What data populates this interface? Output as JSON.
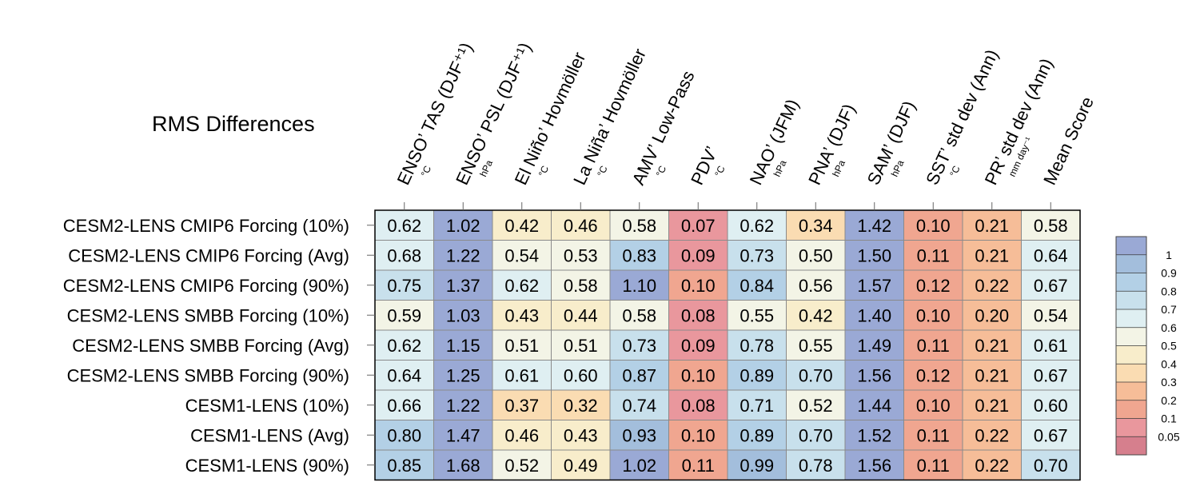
{
  "chart_data": {
    "type": "heatmap",
    "title": "RMS Differences",
    "columns": [
      {
        "label": "ENSO’ TAS (DJF⁺¹)",
        "unit": "°C"
      },
      {
        "label": "ENSO’ PSL (DJF⁺¹)",
        "unit": "hPa"
      },
      {
        "label": "El Niño’ Hovmöller",
        "unit": "°C"
      },
      {
        "label": "La Niña’ Hovmöller",
        "unit": "°C"
      },
      {
        "label": "AMV’ Low-Pass",
        "unit": "°C"
      },
      {
        "label": "PDV’",
        "unit": "°C"
      },
      {
        "label": "NAO’ (JFM)",
        "unit": "hPa"
      },
      {
        "label": "PNA’ (DJF)",
        "unit": "hPa"
      },
      {
        "label": "SAM’ (DJF)",
        "unit": "hPa"
      },
      {
        "label": "SST’ std dev (Ann)",
        "unit": "°C"
      },
      {
        "label": "PR’ std dev (Ann)",
        "unit": "mm day⁻¹"
      },
      {
        "label": "Mean Score",
        "unit": ""
      }
    ],
    "rows": [
      "CESM2-LENS CMIP6 Forcing (10%)",
      "CESM2-LENS CMIP6 Forcing (Avg)",
      "CESM2-LENS CMIP6 Forcing (90%)",
      "CESM2-LENS SMBB Forcing (10%)",
      "CESM2-LENS SMBB Forcing (Avg)",
      "CESM2-LENS SMBB Forcing (90%)",
      "CESM1-LENS (10%)",
      "CESM1-LENS (Avg)",
      "CESM1-LENS (90%)"
    ],
    "values": [
      [
        "0.62",
        "1.02",
        "0.42",
        "0.46",
        "0.58",
        "0.07",
        "0.62",
        "0.34",
        "1.42",
        "0.10",
        "0.21",
        "0.58"
      ],
      [
        "0.68",
        "1.22",
        "0.54",
        "0.53",
        "0.83",
        "0.09",
        "0.73",
        "0.50",
        "1.50",
        "0.11",
        "0.21",
        "0.64"
      ],
      [
        "0.75",
        "1.37",
        "0.62",
        "0.58",
        "1.10",
        "0.10",
        "0.84",
        "0.56",
        "1.57",
        "0.12",
        "0.22",
        "0.67"
      ],
      [
        "0.59",
        "1.03",
        "0.43",
        "0.44",
        "0.58",
        "0.08",
        "0.55",
        "0.42",
        "1.40",
        "0.10",
        "0.20",
        "0.54"
      ],
      [
        "0.62",
        "1.15",
        "0.51",
        "0.51",
        "0.73",
        "0.09",
        "0.78",
        "0.55",
        "1.49",
        "0.11",
        "0.21",
        "0.61"
      ],
      [
        "0.64",
        "1.25",
        "0.61",
        "0.60",
        "0.87",
        "0.10",
        "0.89",
        "0.70",
        "1.56",
        "0.12",
        "0.21",
        "0.67"
      ],
      [
        "0.66",
        "1.22",
        "0.37",
        "0.32",
        "0.74",
        "0.08",
        "0.71",
        "0.52",
        "1.44",
        "0.10",
        "0.21",
        "0.60"
      ],
      [
        "0.80",
        "1.47",
        "0.46",
        "0.43",
        "0.93",
        "0.10",
        "0.89",
        "0.70",
        "1.52",
        "0.11",
        "0.22",
        "0.67"
      ],
      [
        "0.85",
        "1.68",
        "0.52",
        "0.49",
        "1.02",
        "0.11",
        "0.99",
        "0.78",
        "1.56",
        "0.11",
        "0.22",
        "0.70"
      ]
    ],
    "colorbar": {
      "labels": [
        "1",
        "0.9",
        "0.8",
        "0.7",
        "0.6",
        "0.5",
        "0.4",
        "0.3",
        "0.2",
        "0.1",
        "0.05"
      ],
      "boundaries": [
        0,
        0.05,
        0.1,
        0.2,
        0.3,
        0.4,
        0.5,
        0.6,
        0.7,
        0.8,
        0.9,
        1
      ],
      "colors": [
        "#d67f8d",
        "#e9979d",
        "#f0a690",
        "#f6bd98",
        "#fadcb2",
        "#f8edcb",
        "#f3f4e6",
        "#dfeff2",
        "#c8e0ec",
        "#b3d0e6",
        "#a3bedc",
        "#9aa9d5"
      ]
    }
  }
}
